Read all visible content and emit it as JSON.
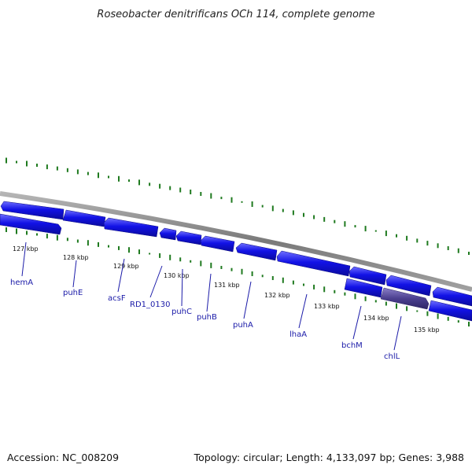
{
  "title": "Roseobacter denitrificans OCh 114, complete genome",
  "footer": {
    "accession": "Accession: NC_008209",
    "summary": "Topology: circular; Length: 4,133,097 bp; Genes: 3,988"
  },
  "ticks": [
    "127 kbp",
    "128 kbp",
    "129 kbp",
    "130 kbp",
    "131 kbp",
    "132 kbp",
    "133 kbp",
    "134 kbp",
    "135 kbp"
  ],
  "genes": [
    "hemA",
    "puhE",
    "acsF",
    "RD1_0130",
    "puhC",
    "puhB",
    "puhA",
    "lhaA",
    "bchM",
    "chlL"
  ],
  "colors": {
    "backbone": "#8a8a8a",
    "gene": "#1010e0",
    "gene_highlight": "#4b3f8f",
    "gc": "#1f7a1f",
    "leader": "#1a1aa8"
  }
}
